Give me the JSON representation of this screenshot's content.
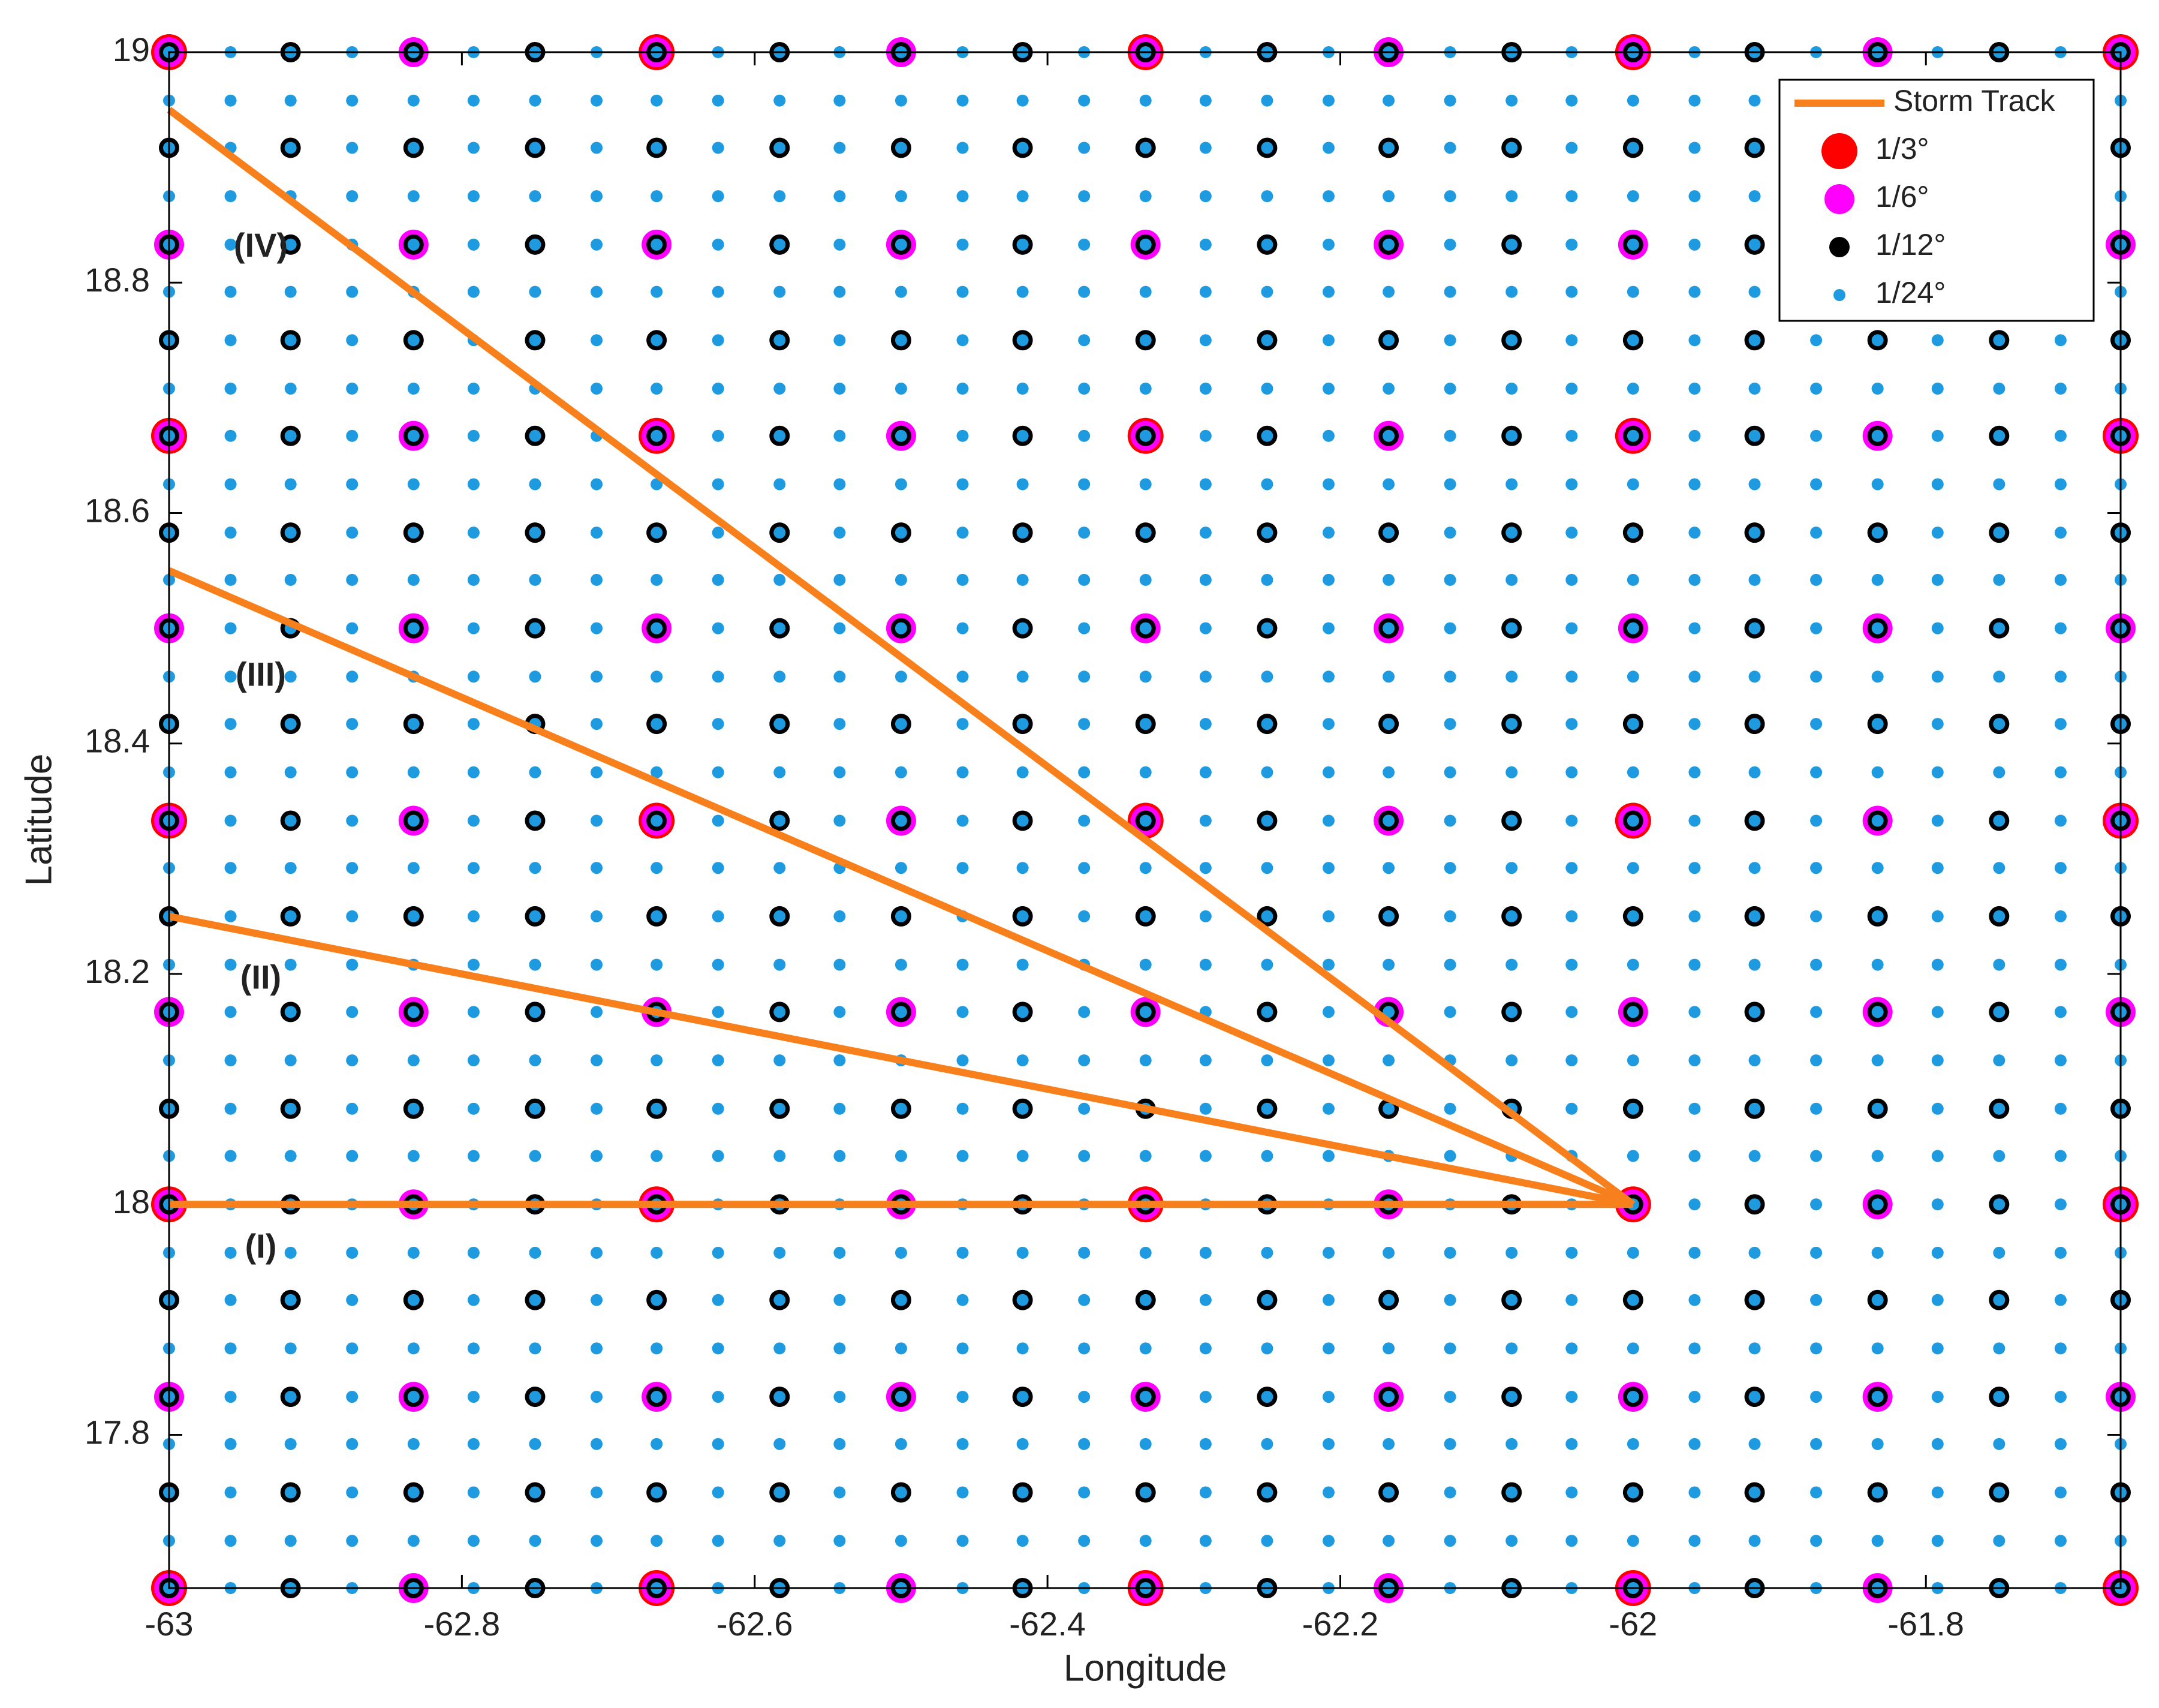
{
  "chart_data": {
    "type": "scatter",
    "x_label": "Longitude",
    "y_label": "Latitude",
    "xlim": [
      -63,
      -61.667
    ],
    "ylim": [
      17.667,
      19
    ],
    "xticks": [
      -63,
      -62.8,
      -62.6,
      -62.4,
      -62.2,
      -62,
      -61.8
    ],
    "yticks": [
      17.8,
      18,
      18.2,
      18.4,
      18.6,
      18.8,
      19
    ],
    "grid": false,
    "legend": "upper right",
    "series": [
      {
        "name": "Storm Track",
        "color": "#f8801c",
        "kind": "line",
        "tracks": [
          {
            "label": "(I)",
            "x": [
              -63,
              -62
            ],
            "y": [
              18,
              18
            ]
          },
          {
            "label": "(II)",
            "x": [
              -63,
              -62
            ],
            "y": [
              18.25,
              18
            ]
          },
          {
            "label": "(III)",
            "x": [
              -63,
              -62
            ],
            "y": [
              18.55,
              18
            ]
          },
          {
            "label": "(IV)",
            "x": [
              -63,
              -62
            ],
            "y": [
              18.95,
              18
            ]
          }
        ]
      },
      {
        "name": "1/3°",
        "color": "#ff0000",
        "kind": "grid",
        "x": [
          -63,
          -62.667,
          -62.333,
          -62,
          -61.667
        ],
        "y": [
          17.667,
          18,
          18.333,
          18.667,
          19
        ]
      },
      {
        "name": "1/6°",
        "color": "#ff00ff",
        "kind": "grid",
        "x": [
          -63,
          -62.833,
          -62.667,
          -62.5,
          -62.333,
          -62.167,
          -62,
          -61.833,
          -61.667
        ],
        "y": [
          17.667,
          17.833,
          18,
          18.167,
          18.333,
          18.5,
          18.667,
          18.833,
          19
        ]
      },
      {
        "name": "1/12°",
        "color": "#000000",
        "kind": "grid",
        "x": [
          -63,
          -62.917,
          -62.833,
          -62.75,
          -62.667,
          -62.583,
          -62.5,
          -62.417,
          -62.333,
          -62.25,
          -62.167,
          -62.083,
          -62,
          -61.917,
          -61.833,
          -61.75,
          -61.667
        ],
        "y": [
          17.667,
          17.75,
          17.833,
          17.917,
          18,
          18.083,
          18.167,
          18.25,
          18.333,
          18.417,
          18.5,
          18.583,
          18.667,
          18.75,
          18.833,
          18.917,
          19
        ]
      },
      {
        "name": "1/24°",
        "color": "#1e9be0",
        "kind": "grid",
        "x": [
          -63,
          -62.958,
          -62.917,
          -62.875,
          -62.833,
          -62.792,
          -62.75,
          -62.708,
          -62.667,
          -62.625,
          -62.583,
          -62.542,
          -62.5,
          -62.458,
          -62.417,
          -62.375,
          -62.333,
          -62.292,
          -62.25,
          -62.208,
          -62.167,
          -62.125,
          -62.083,
          -62.042,
          -62,
          -61.958,
          -61.917,
          -61.875,
          -61.833,
          -61.792,
          -61.75,
          -61.708,
          -61.667
        ],
        "y": [
          17.667,
          17.708,
          17.75,
          17.792,
          17.833,
          17.875,
          17.917,
          17.958,
          18,
          18.042,
          18.083,
          18.125,
          18.167,
          18.208,
          18.25,
          18.292,
          18.333,
          18.375,
          18.417,
          18.458,
          18.5,
          18.542,
          18.583,
          18.625,
          18.667,
          18.708,
          18.75,
          18.792,
          18.833,
          18.875,
          18.917,
          18.958,
          19
        ]
      }
    ]
  }
}
